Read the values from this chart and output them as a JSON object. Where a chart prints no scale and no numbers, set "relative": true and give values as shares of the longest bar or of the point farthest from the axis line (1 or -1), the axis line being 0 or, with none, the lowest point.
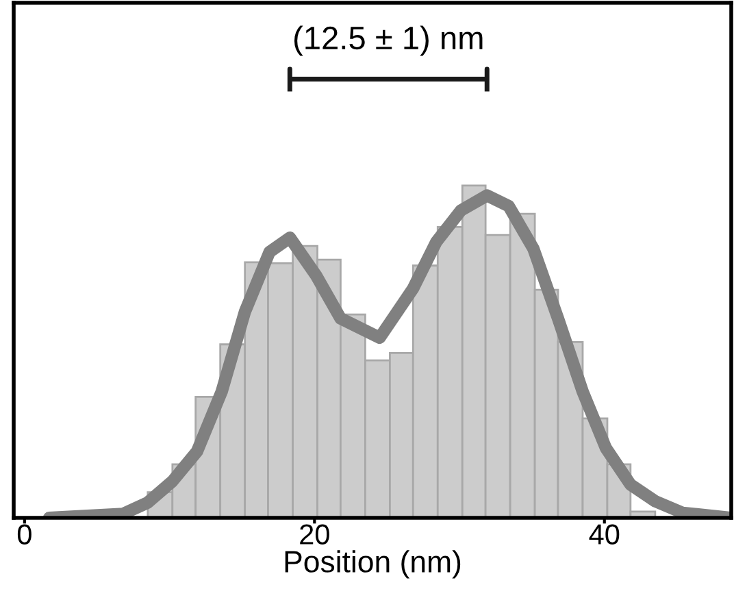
{
  "chart_data": {
    "type": "histogram",
    "relative": true,
    "xlabel": "Position (nm)",
    "xlim": [
      -0.75,
      48.75
    ],
    "xticks": [
      0,
      20,
      40
    ],
    "tick_labels": "x",
    "grid": false,
    "bins": [
      8.5,
      10.2,
      11.8,
      13.5,
      15.2,
      16.8,
      18.5,
      20.2,
      21.8,
      23.5,
      25.2,
      26.8,
      28.5,
      30.2,
      31.8,
      33.5,
      35.2,
      36.8,
      38.5,
      40.2,
      41.8,
      43.5
    ],
    "values": [
      0.077,
      0.161,
      0.364,
      0.522,
      0.769,
      0.766,
      0.818,
      0.777,
      0.612,
      0.474,
      0.496,
      0.759,
      0.875,
      1,
      0.851,
      0.915,
      0.686,
      0.529,
      0.299,
      0.161,
      0.019
    ],
    "color": "#cccccc",
    "series": [
      {
        "type": "line",
        "color": "#808080",
        "x": [
          1.7,
          6.8,
          8.5,
          10.2,
          11.9,
          13.6,
          15.2,
          16.9,
          18.3,
          20.1,
          21.8,
          24.5,
          26.8,
          28.4,
          30.1,
          31.9,
          33.4,
          35.1,
          36.8,
          38.5,
          40.1,
          41.8,
          43.5,
          45.4,
          48.7
        ],
        "values": [
          0,
          0.012,
          0.046,
          0.11,
          0.2,
          0.38,
          0.62,
          0.8,
          0.843,
          0.73,
          0.6,
          0.542,
          0.69,
          0.83,
          0.925,
          0.97,
          0.938,
          0.81,
          0.6,
          0.38,
          0.21,
          0.1,
          0.05,
          0.015,
          0
        ]
      }
    ],
    "annotations": [
      "(12.5 ± 1) nm"
    ]
  }
}
